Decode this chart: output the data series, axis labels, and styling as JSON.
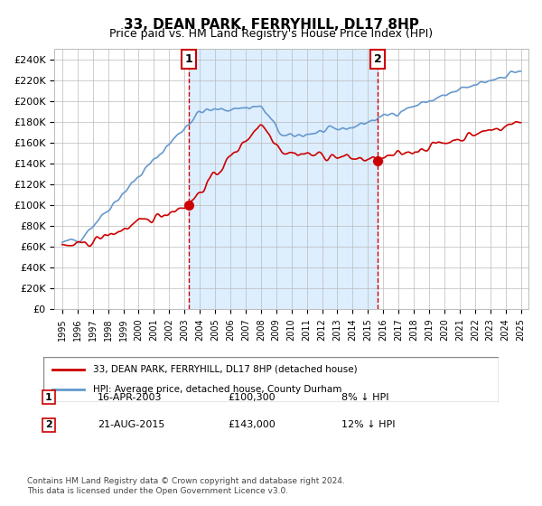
{
  "title": "33, DEAN PARK, FERRYHILL, DL17 8HP",
  "subtitle": "Price paid vs. HM Land Registry's House Price Index (HPI)",
  "legend_line1": "33, DEAN PARK, FERRYHILL, DL17 8HP (detached house)",
  "legend_line2": "HPI: Average price, detached house, County Durham",
  "footnote": "Contains HM Land Registry data © Crown copyright and database right 2024.\nThis data is licensed under the Open Government Licence v3.0.",
  "annotation1": {
    "label": "1",
    "date": "16-APR-2003",
    "price": "£100,300",
    "desc": "8% ↓ HPI",
    "x_year": 2003.29
  },
  "annotation2": {
    "label": "2",
    "date": "21-AUG-2015",
    "price": "£143,000",
    "desc": "12% ↓ HPI",
    "x_year": 2015.64
  },
  "red_color": "#cc0000",
  "blue_color": "#6699cc",
  "bg_fill_color": "#ddeeff",
  "vline_color": "#cc0000",
  "grid_color": "#bbbbbb",
  "ylabel_prefix": "£",
  "ylim": [
    0,
    250000
  ],
  "yticks": [
    0,
    20000,
    40000,
    60000,
    80000,
    100000,
    120000,
    140000,
    160000,
    180000,
    200000,
    220000,
    240000
  ],
  "ytick_labels": [
    "£0",
    "£20K",
    "£40K",
    "£60K",
    "£80K",
    "£100K",
    "£120K",
    "£140K",
    "£160K",
    "£180K",
    "£200K",
    "£220K",
    "£240K"
  ],
  "xlim_start": 1994.5,
  "xlim_end": 2025.5
}
